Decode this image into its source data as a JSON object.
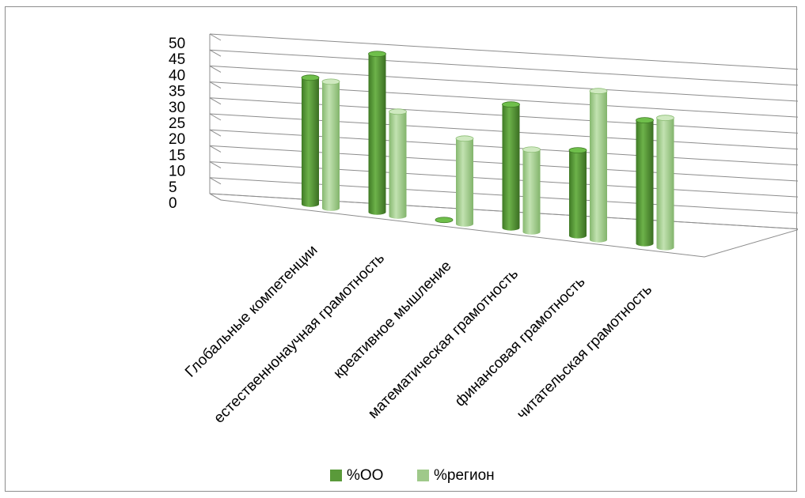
{
  "chart_data": {
    "type": "bar",
    "style": "3d-cylinder",
    "categories": [
      "Глобальные компетенции",
      "естественнонаучная  грамотность",
      "креативное мышление",
      "математическая грамотность",
      "финансовая грамотность",
      "читательская грамотность"
    ],
    "series": [
      {
        "name": "%ОО",
        "color": "#5a9a3a",
        "values": [
          40,
          50,
          0,
          39,
          27,
          39
        ]
      },
      {
        "name": "%регион",
        "color": "#9fc98a",
        "values": [
          40,
          33,
          27,
          26,
          47,
          41
        ]
      }
    ],
    "ylim": [
      0,
      50
    ],
    "yticks": [
      "0",
      "5",
      "10",
      "15",
      "20",
      "25",
      "30",
      "35",
      "40",
      "45",
      "50"
    ],
    "grid": true,
    "legend_position": "bottom"
  }
}
